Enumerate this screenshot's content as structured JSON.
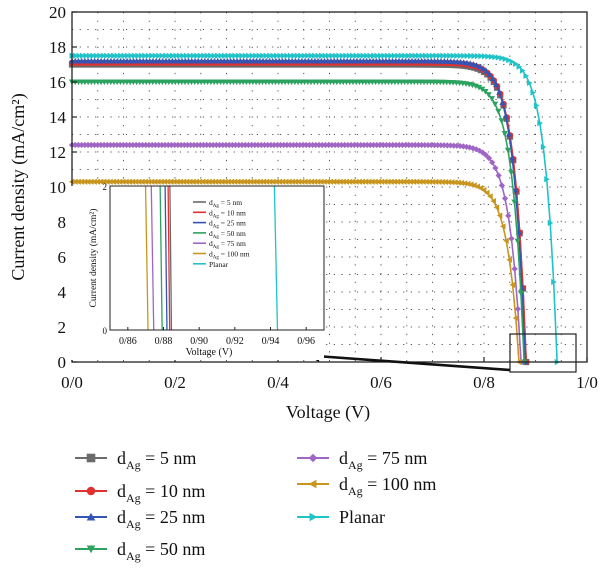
{
  "chart_data": {
    "type": "line",
    "xlabel": "Voltage (V)",
    "ylabel": "Current density (mA/cm²)",
    "xlim": [
      0.0,
      1.0
    ],
    "ylim": [
      0,
      20
    ],
    "xticks": [
      "0/0",
      "0/2",
      "0/4",
      "0/6",
      "0/8",
      "1/0"
    ],
    "yticks": [
      "0",
      "2",
      "4",
      "6",
      "8",
      "10",
      "12",
      "14",
      "16",
      "18",
      "20"
    ],
    "grid": true,
    "legend_position": "below plot",
    "series": [
      {
        "name": "d_Ag = 5 nm",
        "sub": "Ag",
        "label_pre": "d",
        "label_post": " = 5 nm",
        "color": "#6b6b6b",
        "marker": "square",
        "jsc": 17.0,
        "voc": 0.882
      },
      {
        "name": "d_Ag = 10 nm",
        "sub": "Ag",
        "label_pre": "d",
        "label_post": " = 10 nm",
        "color": "#e03131",
        "marker": "circle",
        "jsc": 17.1,
        "voc": 0.882
      },
      {
        "name": "d_Ag = 25 nm",
        "sub": "Ag",
        "label_pre": "d",
        "label_post": " = 25 nm",
        "color": "#3555b5",
        "marker": "triangle-up",
        "jsc": 17.2,
        "voc": 0.88
      },
      {
        "name": "d_Ag = 50 nm",
        "sub": "Ag",
        "label_pre": "d",
        "label_post": " = 50 nm",
        "color": "#2ca25f",
        "marker": "triangle-down",
        "jsc": 16.0,
        "voc": 0.878
      },
      {
        "name": "d_Ag = 75 nm",
        "sub": "Ag",
        "label_pre": "d",
        "label_post": " = 75 nm",
        "color": "#a066c6",
        "marker": "diamond",
        "jsc": 12.4,
        "voc": 0.872
      },
      {
        "name": "d_Ag = 100 nm",
        "sub": "Ag",
        "label_pre": "d",
        "label_post": " = 100 nm",
        "color": "#c8961e",
        "marker": "triangle-left",
        "jsc": 10.3,
        "voc": 0.868
      },
      {
        "name": "Planar",
        "sub": "",
        "label_pre": "Planar",
        "label_post": "",
        "color": "#1fc3c8",
        "marker": "triangle-right",
        "jsc": 17.5,
        "voc": 0.942
      }
    ],
    "inset": {
      "xlabel": "Voltage (V)",
      "ylabel": "Current density (mA/cm²)",
      "xlim": [
        0.85,
        0.97
      ],
      "ylim": [
        0,
        2
      ],
      "xticks": [
        "0/86",
        "0/88",
        "0/90",
        "0/92",
        "0/94",
        "0/96"
      ],
      "yticks": [
        "0",
        "2"
      ],
      "legend": [
        {
          "pre": "d",
          "sub": "Ag",
          "post": " = 5 nm"
        },
        {
          "pre": "d",
          "sub": "Ag",
          "post": " = 10 nm"
        },
        {
          "pre": "d",
          "sub": "Ag",
          "post": " = 25 nm"
        },
        {
          "pre": "d",
          "sub": "Ag",
          "post": " = 50 nm"
        },
        {
          "pre": "d",
          "sub": "Ag",
          "post": " = 75 nm"
        },
        {
          "pre": "d",
          "sub": "Ag",
          "post": " = 100 nm"
        },
        {
          "pre": "Planar",
          "sub": "",
          "post": ""
        }
      ]
    }
  }
}
